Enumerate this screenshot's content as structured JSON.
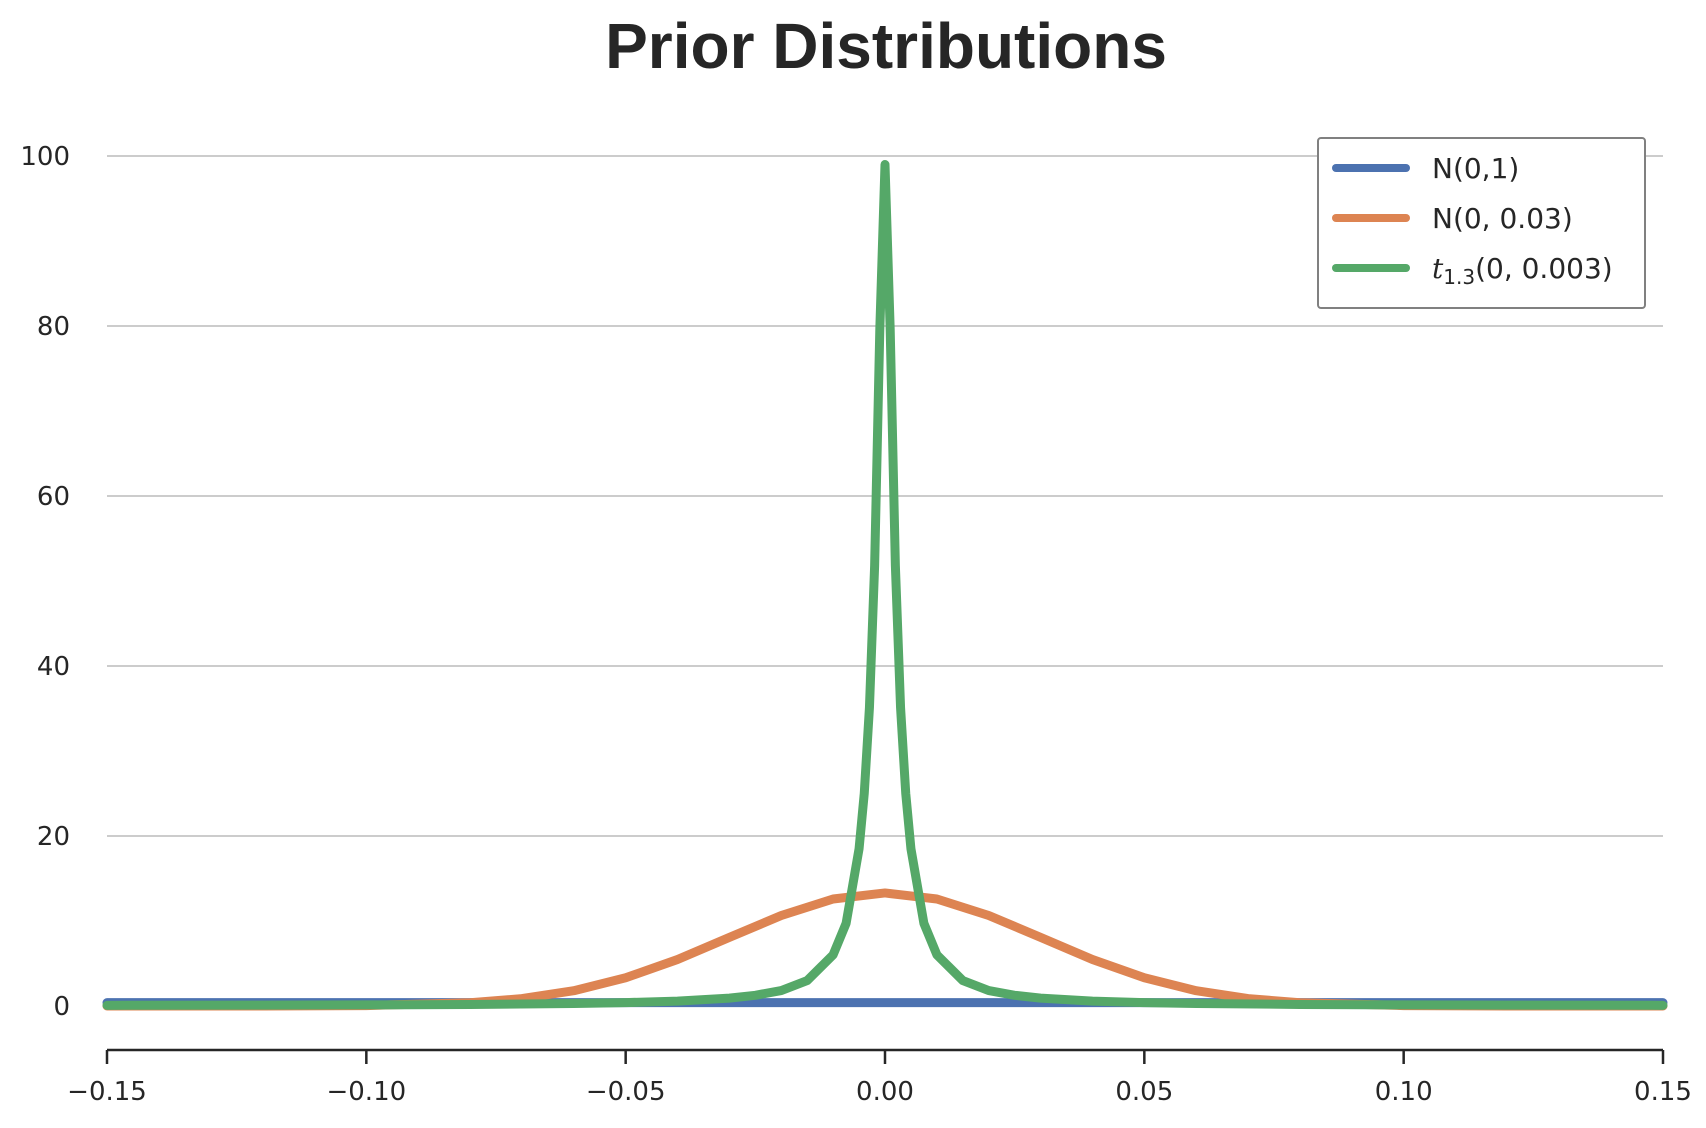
{
  "chart_data": {
    "type": "line",
    "title": "Prior Distributions",
    "xlabel": "",
    "ylabel": "",
    "xlim": [
      -0.15,
      0.15
    ],
    "ylim": [
      -5,
      105
    ],
    "x_ticks": [
      -0.15,
      -0.1,
      -0.05,
      0.0,
      0.05,
      0.1,
      0.15
    ],
    "x_tick_labels": [
      "−0.15",
      "−0.10",
      "−0.05",
      "0.00",
      "0.05",
      "0.10",
      "0.15"
    ],
    "y_ticks": [
      0,
      20,
      40,
      60,
      80,
      100
    ],
    "y_tick_labels": [
      "0",
      "20",
      "40",
      "60",
      "80",
      "100"
    ],
    "grid": "horizontal",
    "legend_position": "top-right",
    "series": [
      {
        "name": "N(0,1)",
        "color": "#4c72b0",
        "x": [
          -0.15,
          -0.1,
          -0.05,
          0.0,
          0.05,
          0.1,
          0.15
        ],
        "y": [
          0.39,
          0.4,
          0.4,
          0.4,
          0.4,
          0.4,
          0.39
        ]
      },
      {
        "name": "N(0, 0.03)",
        "color": "#dd8452",
        "x": [
          -0.15,
          -0.12,
          -0.1,
          -0.08,
          -0.07,
          -0.06,
          -0.05,
          -0.04,
          -0.03,
          -0.02,
          -0.01,
          0.0,
          0.01,
          0.02,
          0.03,
          0.04,
          0.05,
          0.06,
          0.07,
          0.08,
          0.1,
          0.12,
          0.15
        ],
        "y": [
          0.0,
          0.0,
          0.05,
          0.38,
          0.87,
          1.8,
          3.32,
          5.47,
          8.07,
          10.65,
          12.59,
          13.3,
          12.59,
          10.65,
          8.07,
          5.47,
          3.32,
          1.8,
          0.87,
          0.38,
          0.05,
          0.0,
          0.0
        ]
      },
      {
        "name_prefix": "t",
        "name_subscript": "1.3",
        "name_suffix": "(0, 0.003)",
        "color": "#55a868",
        "x": [
          -0.15,
          -0.12,
          -0.1,
          -0.08,
          -0.06,
          -0.05,
          -0.04,
          -0.03,
          -0.025,
          -0.02,
          -0.015,
          -0.01,
          -0.0075,
          -0.005,
          -0.004,
          -0.003,
          -0.002,
          -0.001,
          0.0,
          0.001,
          0.002,
          0.003,
          0.004,
          0.005,
          0.0075,
          0.01,
          0.015,
          0.02,
          0.025,
          0.03,
          0.04,
          0.05,
          0.06,
          0.08,
          0.1,
          0.12,
          0.15
        ],
        "y": [
          0.08,
          0.1,
          0.13,
          0.18,
          0.3,
          0.4,
          0.57,
          0.93,
          1.26,
          1.82,
          2.99,
          6.03,
          9.72,
          18.5,
          25.0,
          35.1,
          51.8,
          79.6,
          99.0,
          79.6,
          51.8,
          35.1,
          25.0,
          18.5,
          9.72,
          6.03,
          2.99,
          1.82,
          1.26,
          0.93,
          0.57,
          0.4,
          0.3,
          0.18,
          0.13,
          0.1,
          0.08
        ]
      }
    ]
  }
}
